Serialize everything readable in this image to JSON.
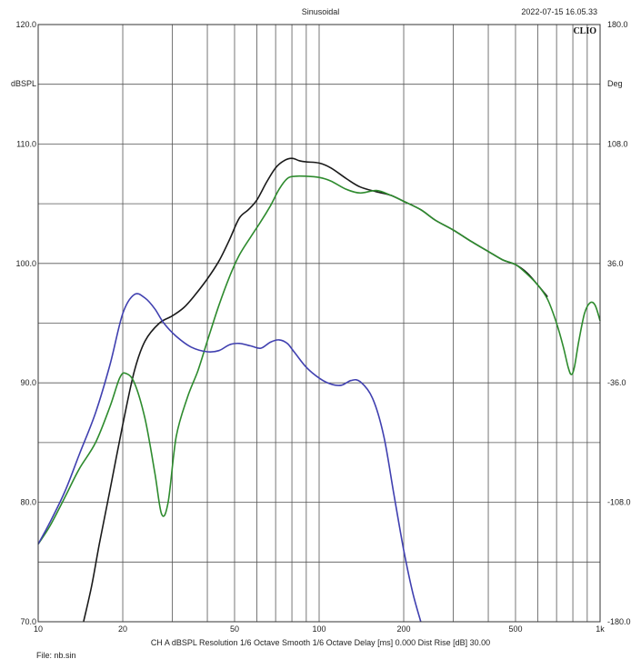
{
  "header": {
    "title": "Sinusoidal",
    "datestamp": "2022-07-15 16.05.33",
    "brand": "CLIO"
  },
  "footer": {
    "settings": "CH A   dBSPL   Resolution 1/6 Octave   Smooth 1/6 Octave   Delay [ms] 0.000   Dist Rise [dB] 30.00",
    "file": "File: nb.sin"
  },
  "chart_data": {
    "type": "line",
    "title": "Sinusoidal",
    "xlabel": "",
    "ylabel": "dBSPL",
    "y2label": "Deg",
    "x_scale": "log",
    "xlim": [
      10,
      1000
    ],
    "ylim": [
      70,
      120
    ],
    "y2lim": [
      -180,
      180
    ],
    "grid": true,
    "x_ticks": [
      {
        "value": 10,
        "label": "10"
      },
      {
        "value": 20,
        "label": "20"
      },
      {
        "value": 50,
        "label": "50"
      },
      {
        "value": 100,
        "label": "100"
      },
      {
        "value": 200,
        "label": "200"
      },
      {
        "value": 500,
        "label": "500"
      },
      {
        "value": 1000,
        "label": "1k"
      }
    ],
    "y_ticks": [
      {
        "value": 120,
        "label": "120.0"
      },
      {
        "value": 110,
        "label": "110.0"
      },
      {
        "value": 100,
        "label": "100.0"
      },
      {
        "value": 90,
        "label": "90.0"
      },
      {
        "value": 80,
        "label": "80.0"
      },
      {
        "value": 70,
        "label": "70.0"
      }
    ],
    "y2_ticks": [
      {
        "value": 180,
        "label": "180.0"
      },
      {
        "value": 108,
        "label": "108.0"
      },
      {
        "value": 36,
        "label": "36.0"
      },
      {
        "value": -36,
        "label": "-36.0"
      },
      {
        "value": -108,
        "label": "-108.0"
      },
      {
        "value": -180,
        "label": "-180.0"
      }
    ],
    "series": [
      {
        "color": "#1a1a1a",
        "x": [
          14.5,
          15.5,
          16.5,
          18,
          20,
          22,
          24,
          27,
          30,
          33,
          36,
          40,
          44,
          48,
          52,
          56,
          60,
          65,
          70,
          75,
          80,
          85,
          90,
          100,
          110,
          125,
          140,
          160,
          180,
          200,
          230,
          260,
          300,
          350,
          400,
          450,
          500,
          550,
          600,
          650
        ],
        "y": [
          70.0,
          73.0,
          76.5,
          81.0,
          86.5,
          91.0,
          93.5,
          95.0,
          95.6,
          96.3,
          97.3,
          98.7,
          100.2,
          102.0,
          103.8,
          104.5,
          105.3,
          106.8,
          108.0,
          108.6,
          108.8,
          108.6,
          108.5,
          108.4,
          108.0,
          107.1,
          106.4,
          106.0,
          105.7,
          105.2,
          104.5,
          103.6,
          102.8,
          101.8,
          101.0,
          100.3,
          99.9,
          99.2,
          98.2,
          97.2
        ]
      },
      {
        "color": "#2e8b2e",
        "x": [
          10,
          11,
          12.5,
          14,
          16,
          18,
          19.5,
          20.5,
          22,
          24,
          26,
          27.5,
          29,
          31,
          34,
          37,
          40,
          44,
          48,
          52,
          57,
          62,
          67,
          72,
          77,
          82,
          90,
          100,
          110,
          125,
          140,
          160,
          180,
          200,
          230,
          260,
          300,
          350,
          400,
          450,
          500,
          550,
          600,
          650,
          700,
          740,
          770,
          790,
          810,
          840,
          880,
          920,
          960,
          1000
        ],
        "y": [
          76.5,
          78.0,
          80.5,
          82.8,
          85.0,
          88.0,
          90.4,
          90.8,
          90.0,
          87.0,
          82.5,
          79.0,
          80.0,
          85.5,
          88.8,
          91.0,
          93.5,
          96.5,
          98.9,
          100.7,
          102.2,
          103.5,
          104.8,
          106.2,
          107.1,
          107.3,
          107.3,
          107.2,
          106.9,
          106.2,
          105.9,
          106.1,
          105.7,
          105.2,
          104.5,
          103.6,
          102.8,
          101.8,
          101.0,
          100.3,
          99.9,
          99.1,
          98.2,
          97.0,
          95.0,
          93.0,
          91.3,
          90.7,
          91.3,
          93.5,
          95.8,
          96.7,
          96.5,
          95.2
        ]
      },
      {
        "color": "#4040b0",
        "x": [
          10,
          11,
          12.5,
          14,
          16,
          18,
          20,
          22,
          24,
          26,
          28,
          31,
          35,
          40,
          44,
          48,
          52,
          57,
          62,
          67,
          72,
          77,
          82,
          90,
          100,
          110,
          120,
          130,
          140,
          155,
          170,
          185,
          200,
          215,
          230
        ],
        "y": [
          76.5,
          78.3,
          81.0,
          84.0,
          87.5,
          91.5,
          95.8,
          97.4,
          97.1,
          96.2,
          95.0,
          93.9,
          93.0,
          92.6,
          92.7,
          93.2,
          93.3,
          93.1,
          92.9,
          93.4,
          93.6,
          93.3,
          92.5,
          91.3,
          90.4,
          89.9,
          89.8,
          90.2,
          90.1,
          88.7,
          85.5,
          80.5,
          76.0,
          72.5,
          70.0
        ]
      }
    ]
  }
}
